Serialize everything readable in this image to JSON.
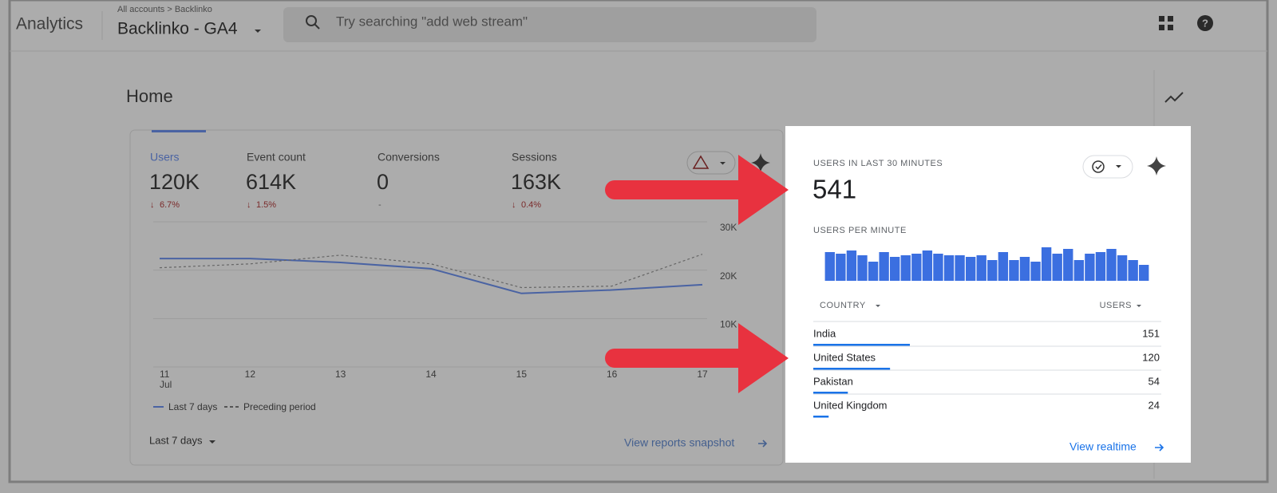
{
  "header": {
    "product": "Analytics",
    "breadcrumb": "All accounts > Backlinko",
    "property": "Backlinko - GA4",
    "search_placeholder": "Try searching \"add web stream\""
  },
  "page_title": "Home",
  "metrics": [
    {
      "label": "Users",
      "value": "120K",
      "change": "6.7%"
    },
    {
      "label": "Event count",
      "value": "614K",
      "change": "1.5%"
    },
    {
      "label": "Conversions",
      "value": "0",
      "change": "-"
    },
    {
      "label": "Sessions",
      "value": "163K",
      "change": "0.4%"
    }
  ],
  "chart_data": [
    {
      "type": "line",
      "categories": [
        "11",
        "12",
        "13",
        "14",
        "15",
        "16",
        "17"
      ],
      "x_month": "Jul",
      "series": [
        {
          "name": "Last 7 days",
          "color": "#4a63a3",
          "values": [
            22400,
            22400,
            21600,
            20300,
            15200,
            15900,
            17000
          ]
        },
        {
          "name": "Preceding period",
          "color": "#666666",
          "dashed": true,
          "values": [
            20500,
            21300,
            23100,
            21300,
            16400,
            16700,
            23300
          ]
        }
      ],
      "ylim": [
        0,
        30000
      ],
      "yticks": [
        {
          "value": 10000,
          "label": "10K"
        },
        {
          "value": 20000,
          "label": "20K"
        },
        {
          "value": 30000,
          "label": "30K"
        }
      ],
      "grid": true
    },
    {
      "type": "bar",
      "title": "USERS PER MINUTE",
      "color": "#3b6fe0",
      "values": [
        18,
        17,
        19,
        16,
        12,
        18,
        15,
        16,
        17,
        19,
        17,
        16,
        16,
        15,
        16,
        13,
        18,
        13,
        15,
        12,
        21,
        17,
        20,
        13,
        17,
        18,
        20,
        16,
        13,
        10
      ]
    }
  ],
  "date_range": "Last 7 days",
  "snapshot_link": "View reports snapshot",
  "realtime": {
    "title": "USERS IN LAST 30 MINUTES",
    "value": "541",
    "table": {
      "headers": [
        "COUNTRY",
        "USERS"
      ],
      "rows": [
        [
          "India",
          151
        ],
        [
          "United States",
          120
        ],
        [
          "Pakistan",
          54
        ],
        [
          "United Kingdom",
          24
        ]
      ]
    },
    "link": "View realtime"
  }
}
